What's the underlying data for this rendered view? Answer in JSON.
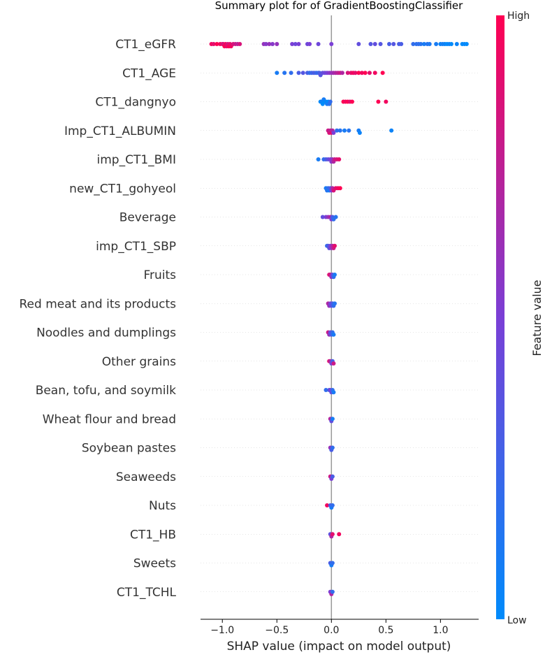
{
  "chart_data": {
    "type": "scatter",
    "subtype": "shap-beeswarm",
    "title": "Summary plot for of GradientBoostingClassifier",
    "xlabel": "SHAP value (impact on model output)",
    "ylabel": "",
    "xlim": [
      -1.2,
      1.35
    ],
    "xticks": [
      -1.0,
      -0.5,
      0.0,
      0.5,
      1.0
    ],
    "xtick_labels": [
      "−1.0",
      "−0.5",
      "0.0",
      "0.5",
      "1.0"
    ],
    "colorbar": {
      "title": "Feature value",
      "high_label": "High",
      "low_label": "Low",
      "high_color": "#ff0052",
      "low_color": "#008bfb"
    },
    "grid": "horizontal dotted",
    "features": [
      {
        "name": "CT1_eGFR",
        "points": [
          [
            -1.1,
            0.95
          ],
          [
            -1.08,
            0.9
          ],
          [
            -1.05,
            1.0
          ],
          [
            -1.02,
            0.95
          ],
          [
            -1.0,
            0.9
          ],
          [
            -0.99,
            0.85
          ],
          [
            -0.98,
            1.0
          ],
          [
            -0.97,
            0.95
          ],
          [
            -0.96,
            0.9
          ],
          [
            -0.95,
            0.85
          ],
          [
            -0.94,
            1.0
          ],
          [
            -0.93,
            0.9
          ],
          [
            -0.92,
            0.95
          ],
          [
            -0.9,
            0.85
          ],
          [
            -0.88,
            0.8
          ],
          [
            -0.86,
            0.75
          ],
          [
            -0.84,
            0.85
          ],
          [
            -0.62,
            0.6
          ],
          [
            -0.6,
            0.55
          ],
          [
            -0.57,
            0.6
          ],
          [
            -0.54,
            0.55
          ],
          [
            -0.5,
            0.6
          ],
          [
            -0.36,
            0.5
          ],
          [
            -0.33,
            0.45
          ],
          [
            -0.3,
            0.5
          ],
          [
            -0.22,
            0.45
          ],
          [
            -0.2,
            0.5
          ],
          [
            -0.12,
            0.45
          ],
          [
            0.0,
            0.5
          ],
          [
            0.25,
            0.4
          ],
          [
            0.36,
            0.35
          ],
          [
            0.4,
            0.4
          ],
          [
            0.45,
            0.35
          ],
          [
            0.53,
            0.3
          ],
          [
            0.57,
            0.35
          ],
          [
            0.62,
            0.3
          ],
          [
            0.64,
            0.3
          ],
          [
            0.75,
            0.2
          ],
          [
            0.78,
            0.18
          ],
          [
            0.8,
            0.2
          ],
          [
            0.82,
            0.15
          ],
          [
            0.85,
            0.1
          ],
          [
            0.88,
            0.15
          ],
          [
            0.9,
            0.12
          ],
          [
            0.96,
            0.1
          ],
          [
            1.0,
            0.05
          ],
          [
            1.02,
            0.08
          ],
          [
            1.04,
            0.05
          ],
          [
            1.06,
            0.0
          ],
          [
            1.08,
            0.05
          ],
          [
            1.1,
            0.0
          ],
          [
            1.15,
            0.05
          ],
          [
            1.2,
            0.0
          ],
          [
            1.22,
            0.02
          ],
          [
            1.24,
            0.0
          ]
        ]
      },
      {
        "name": "CT1_AGE",
        "points": [
          [
            -0.5,
            0.1
          ],
          [
            -0.43,
            0.15
          ],
          [
            -0.37,
            0.2
          ],
          [
            -0.3,
            0.3
          ],
          [
            -0.26,
            0.35
          ],
          [
            -0.22,
            0.3
          ],
          [
            -0.2,
            0.2
          ],
          [
            -0.18,
            0.25
          ],
          [
            -0.16,
            0.3
          ],
          [
            -0.14,
            0.25
          ],
          [
            -0.12,
            0.2
          ],
          [
            -0.11,
            0.3
          ],
          [
            -0.1,
            0.35
          ],
          [
            -0.08,
            0.4
          ],
          [
            -0.06,
            0.45
          ],
          [
            -0.04,
            0.5
          ],
          [
            -0.02,
            0.55
          ],
          [
            0.0,
            0.6
          ],
          [
            0.02,
            0.65
          ],
          [
            0.04,
            0.7
          ],
          [
            0.06,
            0.75
          ],
          [
            0.08,
            0.8
          ],
          [
            0.1,
            0.7
          ],
          [
            0.15,
            0.85
          ],
          [
            0.18,
            0.9
          ],
          [
            0.2,
            0.95
          ],
          [
            0.22,
            0.9
          ],
          [
            0.25,
            1.0
          ],
          [
            0.28,
            0.95
          ],
          [
            0.31,
            1.0
          ],
          [
            0.35,
            0.9
          ],
          [
            0.4,
            0.95
          ],
          [
            0.47,
            1.0
          ]
        ]
      },
      {
        "name": "CT1_dangnyo",
        "points": [
          [
            -0.1,
            0.0
          ],
          [
            -0.09,
            0.05
          ],
          [
            -0.08,
            0.0
          ],
          [
            -0.07,
            0.1
          ],
          [
            -0.06,
            0.0
          ],
          [
            -0.05,
            0.05
          ],
          [
            -0.04,
            0.1
          ],
          [
            -0.03,
            0.0
          ],
          [
            -0.02,
            0.15
          ],
          [
            -0.01,
            0.2
          ],
          [
            0.11,
            1.0
          ],
          [
            0.13,
            0.95
          ],
          [
            0.15,
            1.0
          ],
          [
            0.17,
            0.9
          ],
          [
            0.19,
            1.0
          ],
          [
            0.43,
            1.0
          ],
          [
            0.5,
            0.95
          ]
        ]
      },
      {
        "name": "Imp_CT1_ALBUMIN",
        "points": [
          [
            -0.03,
            0.8
          ],
          [
            -0.02,
            0.85
          ],
          [
            -0.01,
            0.75
          ],
          [
            0.0,
            0.9
          ],
          [
            0.01,
            0.7
          ],
          [
            0.02,
            0.5
          ],
          [
            0.05,
            0.2
          ],
          [
            0.08,
            0.15
          ],
          [
            0.12,
            0.1
          ],
          [
            0.16,
            0.15
          ],
          [
            0.25,
            0.1
          ],
          [
            0.26,
            0.05
          ],
          [
            0.55,
            0.05
          ]
        ]
      },
      {
        "name": "imp_CT1_BMI",
        "points": [
          [
            -0.12,
            0.1
          ],
          [
            -0.07,
            0.2
          ],
          [
            -0.05,
            0.3
          ],
          [
            -0.03,
            0.4
          ],
          [
            -0.01,
            0.5
          ],
          [
            0.0,
            0.55
          ],
          [
            0.01,
            0.6
          ],
          [
            0.02,
            0.7
          ],
          [
            0.03,
            0.8
          ],
          [
            0.05,
            0.85
          ],
          [
            0.07,
            0.9
          ]
        ]
      },
      {
        "name": "new_CT1_gohyeol",
        "points": [
          [
            -0.05,
            0.1
          ],
          [
            -0.04,
            0.15
          ],
          [
            -0.03,
            0.2
          ],
          [
            -0.02,
            0.1
          ],
          [
            -0.01,
            0.3
          ],
          [
            0.0,
            0.5
          ],
          [
            0.01,
            0.7
          ],
          [
            0.02,
            0.85
          ],
          [
            0.04,
            0.9
          ],
          [
            0.06,
            0.95
          ],
          [
            0.08,
            1.0
          ]
        ]
      },
      {
        "name": "Beverage",
        "points": [
          [
            -0.08,
            0.4
          ],
          [
            -0.05,
            0.5
          ],
          [
            -0.03,
            0.6
          ],
          [
            -0.01,
            0.7
          ],
          [
            0.0,
            0.5
          ],
          [
            0.01,
            0.3
          ],
          [
            0.02,
            0.2
          ],
          [
            0.04,
            0.15
          ]
        ]
      },
      {
        "name": "imp_CT1_SBP",
        "points": [
          [
            -0.04,
            0.2
          ],
          [
            -0.03,
            0.3
          ],
          [
            -0.02,
            0.4
          ],
          [
            -0.01,
            0.5
          ],
          [
            0.0,
            0.6
          ],
          [
            0.01,
            0.7
          ],
          [
            0.02,
            0.8
          ],
          [
            0.03,
            0.9
          ]
        ]
      },
      {
        "name": "Fruits",
        "points": [
          [
            -0.02,
            0.9
          ],
          [
            -0.01,
            0.8
          ],
          [
            0.0,
            0.6
          ],
          [
            0.01,
            0.4
          ],
          [
            0.02,
            0.2
          ],
          [
            0.03,
            0.1
          ]
        ]
      },
      {
        "name": "Red meat and its products",
        "points": [
          [
            -0.03,
            0.7
          ],
          [
            -0.02,
            0.6
          ],
          [
            -0.01,
            0.5
          ],
          [
            0.0,
            0.4
          ],
          [
            0.01,
            0.3
          ],
          [
            0.02,
            0.2
          ],
          [
            0.03,
            0.15
          ]
        ]
      },
      {
        "name": "Noodles and dumplings",
        "points": [
          [
            -0.03,
            0.8
          ],
          [
            -0.02,
            0.6
          ],
          [
            -0.01,
            0.4
          ],
          [
            0.0,
            0.3
          ],
          [
            0.01,
            0.2
          ],
          [
            0.02,
            0.1
          ]
        ]
      },
      {
        "name": "Other grains",
        "points": [
          [
            -0.02,
            0.9
          ],
          [
            -0.01,
            0.7
          ],
          [
            0.0,
            0.5
          ],
          [
            0.01,
            0.3
          ],
          [
            0.02,
            0.8
          ]
        ]
      },
      {
        "name": "Bean, tofu, and soymilk",
        "points": [
          [
            -0.05,
            0.2
          ],
          [
            -0.02,
            0.3
          ],
          [
            -0.01,
            0.5
          ],
          [
            0.0,
            0.4
          ],
          [
            0.01,
            0.2
          ],
          [
            0.02,
            0.1
          ]
        ]
      },
      {
        "name": "Wheat flour and bread",
        "points": [
          [
            -0.01,
            0.7
          ],
          [
            0.0,
            0.4
          ],
          [
            0.01,
            0.1
          ]
        ]
      },
      {
        "name": "Soybean pastes",
        "points": [
          [
            -0.01,
            0.6
          ],
          [
            0.0,
            0.3
          ],
          [
            0.01,
            0.2
          ]
        ]
      },
      {
        "name": "Seaweeds",
        "points": [
          [
            -0.01,
            0.8
          ],
          [
            0.0,
            0.5
          ],
          [
            0.01,
            0.3
          ]
        ]
      },
      {
        "name": "Nuts",
        "points": [
          [
            -0.04,
            0.95
          ],
          [
            -0.01,
            0.3
          ],
          [
            0.0,
            0.1
          ],
          [
            0.01,
            0.2
          ]
        ]
      },
      {
        "name": "CT1_HB",
        "points": [
          [
            -0.01,
            0.4
          ],
          [
            0.0,
            0.7
          ],
          [
            0.01,
            0.9
          ],
          [
            0.07,
            0.95
          ]
        ]
      },
      {
        "name": "Sweets",
        "points": [
          [
            -0.01,
            0.3
          ],
          [
            0.0,
            0.1
          ],
          [
            0.01,
            0.2
          ]
        ]
      },
      {
        "name": "CT1_TCHL",
        "points": [
          [
            -0.01,
            0.5
          ],
          [
            0.0,
            0.7
          ],
          [
            0.01,
            0.2
          ]
        ]
      }
    ]
  }
}
